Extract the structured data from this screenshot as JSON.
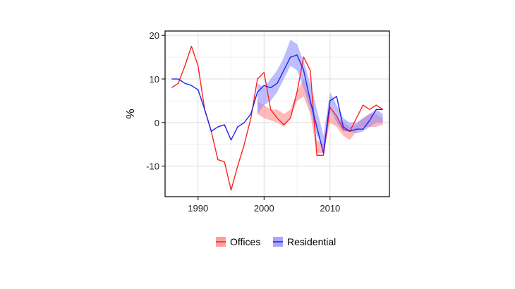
{
  "chart_data": {
    "type": "line",
    "ylabel": "%",
    "xlabel": "",
    "xlim": [
      1985,
      2019
    ],
    "ylim": [
      -17,
      21
    ],
    "xticks": [
      1990,
      2000,
      2010
    ],
    "yticks": [
      -10,
      0,
      10,
      20
    ],
    "grid": true,
    "legend_position": "bottom",
    "series": [
      {
        "name": "Offices",
        "color": "#ff2222",
        "band_color": "#ff8080",
        "line": [
          [
            1986,
            8
          ],
          [
            1987,
            9
          ],
          [
            1988,
            13
          ],
          [
            1989,
            17.5
          ],
          [
            1990,
            13
          ],
          [
            1991,
            3
          ],
          [
            1992,
            -2
          ],
          [
            1993,
            -8.5
          ],
          [
            1994,
            -9
          ],
          [
            1995,
            -15.5
          ],
          [
            1996,
            -10
          ],
          [
            1997,
            -5
          ],
          [
            1998,
            1
          ],
          [
            1999,
            10
          ],
          [
            2000,
            11.5
          ],
          [
            2001,
            3
          ],
          [
            2002,
            1
          ],
          [
            2003,
            -0.5
          ],
          [
            2004,
            1
          ],
          [
            2005,
            7
          ],
          [
            2006,
            15
          ],
          [
            2007,
            12
          ],
          [
            2008,
            -7.5
          ],
          [
            2009,
            -7.5
          ],
          [
            2010,
            3.5
          ],
          [
            2011,
            1.5
          ],
          [
            2012,
            -1.5
          ],
          [
            2013,
            -2
          ],
          [
            2014,
            1
          ],
          [
            2015,
            4
          ],
          [
            2016,
            3
          ],
          [
            2017,
            4
          ],
          [
            2018,
            3
          ]
        ],
        "band_upper": [
          [
            1999,
            5
          ],
          [
            2000,
            4
          ],
          [
            2001,
            3
          ],
          [
            2002,
            3
          ],
          [
            2003,
            2
          ],
          [
            2004,
            3
          ],
          [
            2005,
            7
          ],
          [
            2006,
            10
          ],
          [
            2007,
            6
          ],
          [
            2008,
            -4
          ],
          [
            2009,
            -5
          ],
          [
            2010,
            3
          ],
          [
            2011,
            1
          ],
          [
            2012,
            0
          ],
          [
            2013,
            -1
          ],
          [
            2014,
            -0.5
          ],
          [
            2015,
            1
          ],
          [
            2016,
            2
          ],
          [
            2017,
            2
          ],
          [
            2018,
            1
          ]
        ],
        "band_lower": [
          [
            1999,
            2
          ],
          [
            2000,
            1
          ],
          [
            2001,
            0.5
          ],
          [
            2002,
            0
          ],
          [
            2003,
            -1
          ],
          [
            2004,
            1
          ],
          [
            2005,
            5
          ],
          [
            2006,
            6
          ],
          [
            2007,
            2
          ],
          [
            2008,
            -7
          ],
          [
            2009,
            -7
          ],
          [
            2010,
            0
          ],
          [
            2011,
            -1
          ],
          [
            2012,
            -3
          ],
          [
            2013,
            -4
          ],
          [
            2014,
            -2
          ],
          [
            2015,
            -1
          ],
          [
            2016,
            -1
          ],
          [
            2017,
            -1
          ],
          [
            2018,
            -0.5
          ]
        ]
      },
      {
        "name": "Residential",
        "color": "#2222ee",
        "band_color": "#8888ff",
        "line": [
          [
            1986,
            10
          ],
          [
            1987,
            10
          ],
          [
            1988,
            9
          ],
          [
            1989,
            8.5
          ],
          [
            1990,
            7.5
          ],
          [
            1991,
            3
          ],
          [
            1992,
            -2
          ],
          [
            1993,
            -1
          ],
          [
            1994,
            -0.5
          ],
          [
            1995,
            -4
          ],
          [
            1996,
            -1
          ],
          [
            1997,
            0
          ],
          [
            1998,
            2
          ],
          [
            1999,
            7
          ],
          [
            2000,
            8.5
          ],
          [
            2001,
            8
          ],
          [
            2002,
            9
          ],
          [
            2003,
            12
          ],
          [
            2004,
            15
          ],
          [
            2005,
            15.5
          ],
          [
            2006,
            12
          ],
          [
            2007,
            5
          ],
          [
            2008,
            -1
          ],
          [
            2009,
            -7
          ],
          [
            2010,
            5
          ],
          [
            2011,
            6
          ],
          [
            2012,
            -1
          ],
          [
            2013,
            -2
          ],
          [
            2014,
            -1.5
          ],
          [
            2015,
            -1.5
          ],
          [
            2016,
            0.5
          ],
          [
            2017,
            3
          ],
          [
            2018,
            3
          ]
        ],
        "band_upper": [
          [
            1999,
            9
          ],
          [
            2000,
            8
          ],
          [
            2001,
            10
          ],
          [
            2002,
            12
          ],
          [
            2003,
            15
          ],
          [
            2004,
            19
          ],
          [
            2005,
            18
          ],
          [
            2006,
            14
          ],
          [
            2007,
            9
          ],
          [
            2008,
            3
          ],
          [
            2009,
            -3
          ],
          [
            2010,
            7
          ],
          [
            2011,
            4
          ],
          [
            2012,
            1
          ],
          [
            2013,
            0
          ],
          [
            2014,
            0
          ],
          [
            2015,
            1
          ],
          [
            2016,
            2
          ],
          [
            2017,
            3
          ],
          [
            2018,
            2
          ]
        ],
        "band_lower": [
          [
            1999,
            2
          ],
          [
            2000,
            4
          ],
          [
            2001,
            5
          ],
          [
            2002,
            7
          ],
          [
            2003,
            10
          ],
          [
            2004,
            13
          ],
          [
            2005,
            12
          ],
          [
            2006,
            8
          ],
          [
            2007,
            3
          ],
          [
            2008,
            -3
          ],
          [
            2009,
            -6
          ],
          [
            2010,
            3
          ],
          [
            2011,
            0
          ],
          [
            2012,
            -2
          ],
          [
            2013,
            -2
          ],
          [
            2014,
            -2.5
          ],
          [
            2015,
            -2
          ],
          [
            2016,
            -1
          ],
          [
            2017,
            0
          ],
          [
            2018,
            0
          ]
        ]
      }
    ]
  }
}
